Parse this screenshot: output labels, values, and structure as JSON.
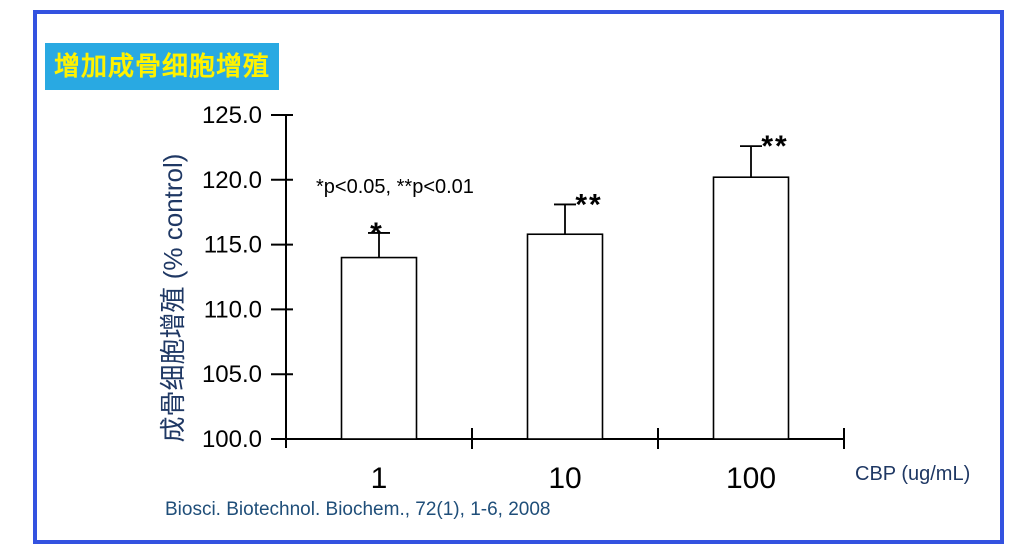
{
  "frame": {
    "border_color": "#3352E0"
  },
  "badge": {
    "text": "增加成骨细胞增殖",
    "bg_color": "#29A9E2",
    "text_color": "#FFF200"
  },
  "chart_data": {
    "type": "bar",
    "categories": [
      "1",
      "10",
      "100"
    ],
    "values": [
      114.0,
      115.8,
      120.2
    ],
    "errors": [
      1.9,
      2.3,
      2.4
    ],
    "significance": [
      "*",
      "**",
      "**"
    ],
    "ylabel": "成骨细胞增殖 (% control)",
    "xlabel": "CBP (ug/mL)",
    "ylim": [
      100,
      125
    ],
    "ytick_step": 5,
    "ytick_decimals": 1,
    "annotation": "*p<0.05, **p<0.01",
    "grid": false,
    "legend": false,
    "bar_fill": "#ffffff",
    "bar_stroke": "#000000",
    "axis_color": "#000000"
  },
  "citation": {
    "text": "Biosci. Biotechnol. Biochem., 72(1), 1-6, 2008",
    "color": "#1F4E79"
  },
  "colors": {
    "axis_title_text": "#1F3864",
    "annotation_text": "#000000"
  }
}
